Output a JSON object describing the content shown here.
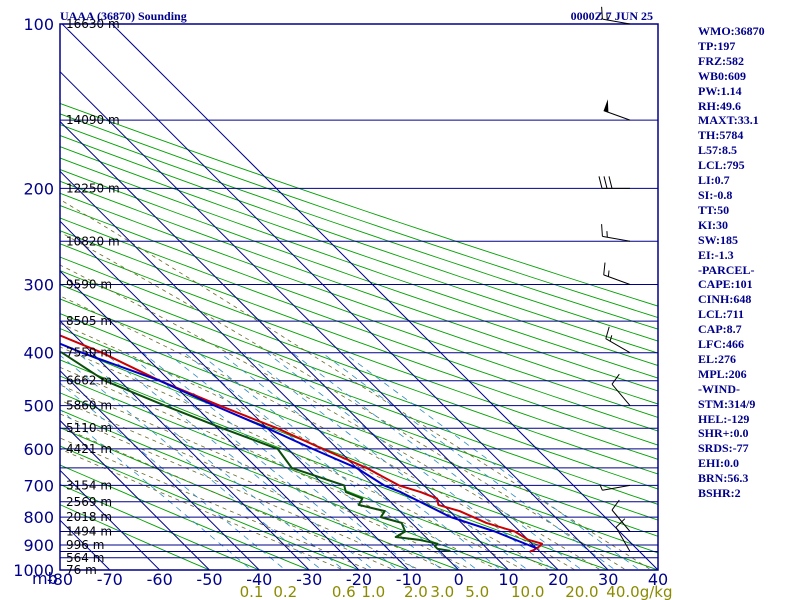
{
  "header": {
    "station_title": "UAAA (36870) Sounding",
    "time_title": "0000Z  7 JUN 25"
  },
  "indices": [
    "WMO:36870",
    "TP:197",
    "FRZ:582",
    "WB0:609",
    "PW:1.14",
    "RH:49.6",
    "MAXT:33.1",
    "TH:5784",
    "L57:8.5",
    "LCL:795",
    "LI:0.7",
    "SI:-0.8",
    "TT:50",
    "KI:30",
    "SW:185",
    "EI:-1.3",
    "-PARCEL-",
    "CAPE:101",
    "CINH:648",
    "LCL:711",
    "CAP:8.7",
    "LFC:466",
    "EL:276",
    "MPL:206",
    "-WIND-",
    "STM:314/9",
    "HEL:-129",
    "SHR+:0.0",
    "SRDS:-77",
    "EHI:0.0",
    "BRN:56.3",
    "BSHR:2"
  ],
  "colors": {
    "frame": "#00008b",
    "isotherm": "#00008b",
    "dry_adiabat": "#00a000",
    "moist_adiabat": "#6b6b2a",
    "mixing_ratio": "#2e8bc0",
    "temperature": "#cc0000",
    "dewpoint": "#0b4d0b",
    "parcel": "#0000cc"
  },
  "chart_data": {
    "type": "line",
    "title": "UAAA (36870) Sounding",
    "xlabel": "",
    "ylabel": "mb",
    "y_scale": "log",
    "grid": true,
    "xlim": [
      -80,
      40
    ],
    "ylim": [
      1000,
      100
    ],
    "x_tick_labels": [
      "-80",
      "-70",
      "-60",
      "-50",
      "-40",
      "-30",
      "-20",
      "-10",
      "0",
      "10",
      "20",
      "30",
      "40"
    ],
    "pressure_levels": [
      100,
      150,
      200,
      250,
      300,
      350,
      400,
      450,
      500,
      550,
      600,
      650,
      700,
      750,
      800,
      850,
      900,
      925,
      950,
      1000
    ],
    "pressure_labels": [
      {
        "p": 100,
        "text": "100"
      },
      {
        "p": 200,
        "text": "200"
      },
      {
        "p": 300,
        "text": "300"
      },
      {
        "p": 400,
        "text": "400"
      },
      {
        "p": 500,
        "text": "500"
      },
      {
        "p": 600,
        "text": "600"
      },
      {
        "p": 700,
        "text": "700"
      },
      {
        "p": 800,
        "text": "800"
      },
      {
        "p": 900,
        "text": "900"
      },
      {
        "p": 1000,
        "text": "1000"
      }
    ],
    "height_labels": [
      {
        "p": 100,
        "text": "16630 m"
      },
      {
        "p": 150,
        "text": "14090 m"
      },
      {
        "p": 200,
        "text": "12250 m"
      },
      {
        "p": 250,
        "text": "10820 m"
      },
      {
        "p": 300,
        "text": "9590 m"
      },
      {
        "p": 350,
        "text": "8505 m"
      },
      {
        "p": 400,
        "text": "7550 m"
      },
      {
        "p": 450,
        "text": "6662 m"
      },
      {
        "p": 500,
        "text": "5860 m"
      },
      {
        "p": 550,
        "text": "5110 m"
      },
      {
        "p": 600,
        "text": "4421 m"
      },
      {
        "p": 700,
        "text": "3154 m"
      },
      {
        "p": 750,
        "text": "2569 m"
      },
      {
        "p": 800,
        "text": "2018 m"
      },
      {
        "p": 850,
        "text": "1494 m"
      },
      {
        "p": 900,
        "text": "996 m"
      },
      {
        "p": 950,
        "text": "564 m"
      },
      {
        "p": 1000,
        "text": "76 m"
      }
    ],
    "mixing_ratio_labels": [
      "0.1",
      "0.2",
      "0.6",
      "1.0",
      "2.0",
      "3.0",
      "5.0",
      "10.0",
      "20.0",
      "40.0"
    ],
    "mixing_ratio_unit": "g/kg",
    "series": [
      {
        "name": "Temperature",
        "color": "#cc0000",
        "points": [
          [
            100,
            -72
          ],
          [
            120,
            -67
          ],
          [
            150,
            -64
          ],
          [
            175,
            -65
          ],
          [
            200,
            -63
          ],
          [
            230,
            -59
          ],
          [
            250,
            -57
          ],
          [
            300,
            -46
          ],
          [
            350,
            -37
          ],
          [
            400,
            -28
          ],
          [
            450,
            -22
          ],
          [
            500,
            -15
          ],
          [
            550,
            -8
          ],
          [
            600,
            -3
          ],
          [
            650,
            2
          ],
          [
            700,
            5
          ],
          [
            720,
            8
          ],
          [
            740,
            10
          ],
          [
            760,
            9
          ],
          [
            780,
            12
          ],
          [
            820,
            15
          ],
          [
            850,
            19
          ],
          [
            880,
            20
          ],
          [
            895,
            22
          ],
          [
            905,
            21
          ],
          [
            920,
            19
          ],
          [
            925,
            18
          ]
        ]
      },
      {
        "name": "Dewpoint",
        "color": "#0b4d0b",
        "points": [
          [
            100,
            -78
          ],
          [
            120,
            -80
          ],
          [
            150,
            -78
          ],
          [
            175,
            -76
          ],
          [
            190,
            -78
          ],
          [
            200,
            -77
          ],
          [
            230,
            -74
          ],
          [
            250,
            -70
          ],
          [
            300,
            -61
          ],
          [
            350,
            -48
          ],
          [
            400,
            -36
          ],
          [
            450,
            -33
          ],
          [
            500,
            -26
          ],
          [
            550,
            -19
          ],
          [
            600,
            -12
          ],
          [
            650,
            -13
          ],
          [
            700,
            -6
          ],
          [
            720,
            -7
          ],
          [
            740,
            -5
          ],
          [
            760,
            -7
          ],
          [
            780,
            -3
          ],
          [
            800,
            -5
          ],
          [
            820,
            -2
          ],
          [
            850,
            -3
          ],
          [
            870,
            -6
          ],
          [
            880,
            -2
          ],
          [
            895,
            1
          ],
          [
            905,
            0
          ],
          [
            915,
            0
          ],
          [
            922,
            2
          ],
          [
            925,
            2
          ]
        ]
      },
      {
        "name": "Parcel",
        "color": "#0000cc",
        "points": [
          [
            150,
            -93
          ],
          [
            200,
            -77
          ],
          [
            250,
            -65
          ],
          [
            300,
            -52
          ],
          [
            350,
            -41
          ],
          [
            400,
            -32
          ],
          [
            450,
            -22
          ],
          [
            500,
            -16
          ],
          [
            550,
            -10
          ],
          [
            600,
            -5
          ],
          [
            650,
            0
          ],
          [
            700,
            2
          ],
          [
            720,
            4
          ],
          [
            800,
            9
          ],
          [
            850,
            15
          ],
          [
            900,
            19
          ],
          [
            912,
            20
          ]
        ]
      }
    ],
    "wind_barbs": [
      {
        "p": 100,
        "dir": 280,
        "spd": 15
      },
      {
        "p": 150,
        "dir": 290,
        "spd": 50
      },
      {
        "p": 200,
        "dir": 270,
        "spd": 30
      },
      {
        "p": 250,
        "dir": 280,
        "spd": 15
      },
      {
        "p": 300,
        "dir": 290,
        "spd": 15
      },
      {
        "p": 400,
        "dir": 300,
        "spd": 15
      },
      {
        "p": 500,
        "dir": 320,
        "spd": 10
      },
      {
        "p": 700,
        "dir": 260,
        "spd": 5
      },
      {
        "p": 850,
        "dir": 320,
        "spd": 10
      },
      {
        "p": 925,
        "dir": 330,
        "spd": 10
      }
    ]
  }
}
